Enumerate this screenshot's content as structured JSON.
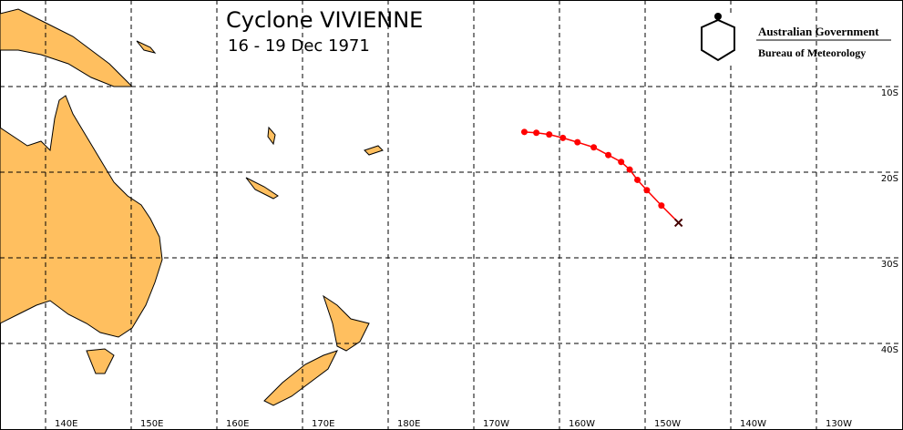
{
  "map": {
    "title": "Cyclone VIVIENNE",
    "subtitle": "16 - 19 Dec 1971",
    "logo": {
      "line1": "Australian Government",
      "line2": "Bureau of Meteorology"
    },
    "lonticks": [
      {
        "value": 140,
        "label": "140E"
      },
      {
        "value": 150,
        "label": "150E"
      },
      {
        "value": 160,
        "label": "160E"
      },
      {
        "value": 170,
        "label": "170E"
      },
      {
        "value": 180,
        "label": "180E"
      },
      {
        "value": -170,
        "label": "170W"
      },
      {
        "value": -160,
        "label": "160W"
      },
      {
        "value": -150,
        "label": "150W"
      },
      {
        "value": -140,
        "label": "140W"
      },
      {
        "value": -130,
        "label": "130W"
      }
    ],
    "latticks": [
      {
        "value": -10,
        "label": "10S"
      },
      {
        "value": -20,
        "label": "20S"
      },
      {
        "value": -30,
        "label": "30S"
      },
      {
        "value": -40,
        "label": "40S"
      }
    ],
    "track": {
      "color": "#ff0000",
      "lon": [
        -164.1,
        -162.7,
        -161.2,
        -159.6,
        -157.9,
        -156.0,
        -154.3,
        -152.8,
        -151.8,
        -150.9,
        -149.8,
        -148.1,
        -146.1
      ],
      "lat": [
        -15.3,
        -15.4,
        -15.6,
        -16.0,
        -16.5,
        -17.1,
        -18.0,
        -18.8,
        -19.7,
        -20.9,
        -22.1,
        -23.9,
        -25.9
      ]
    }
  }
}
